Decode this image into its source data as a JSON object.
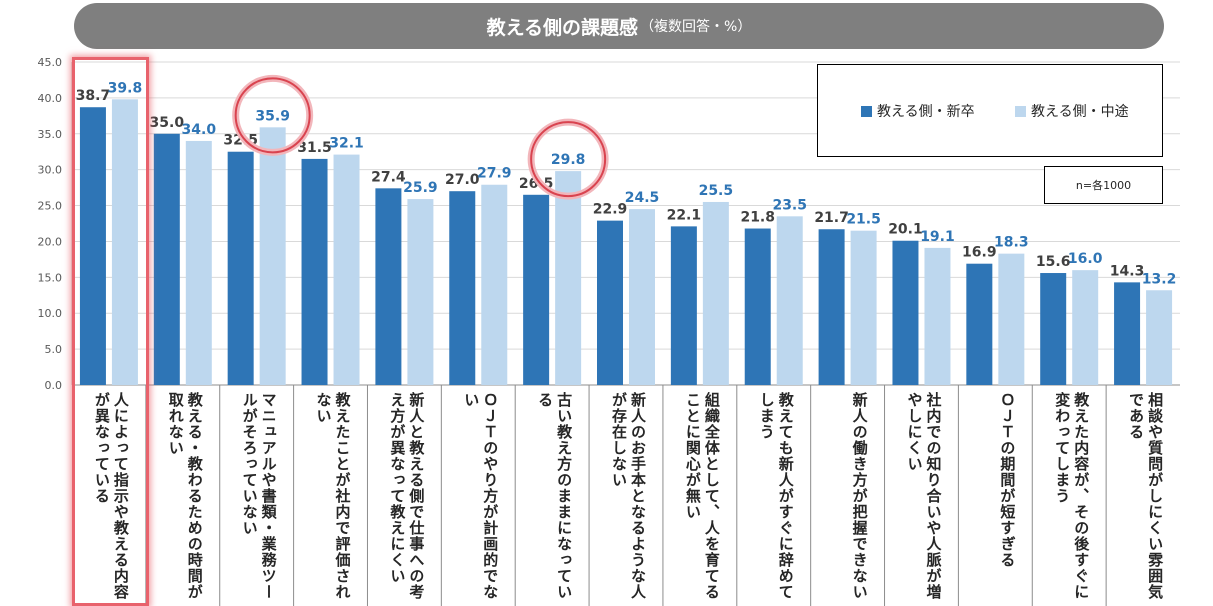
{
  "title": {
    "main": "教える側の課題感",
    "sub": "（複数回答・%）"
  },
  "legend": [
    {
      "name": "教える側・新卒",
      "color": "#2e75b6"
    },
    {
      "name": "教える側・中途",
      "color": "#bdd7ee"
    }
  ],
  "note": "n=各1000",
  "chart_data": {
    "type": "bar",
    "ylim": [
      0,
      45
    ],
    "yticks": [
      "0.0",
      "5.0",
      "10.0",
      "15.0",
      "20.0",
      "25.0",
      "30.0",
      "35.0",
      "40.0",
      "45.0"
    ],
    "grid": true,
    "legend_position": "top-right",
    "categories": [
      "人によって指示や教える内容が異なっている",
      "教える・教わるための時間が取れない",
      "マニュアルや書類・業務ツールがそろっていない",
      "教えたことが社内で評価されない",
      "新人と教える側で仕事への考え方が異なって教えにくい",
      "ＯＪＴのやり方が計画的でない",
      "古い教え方のままになっている",
      "新人のお手本となるような人が存在しない",
      "組織全体として、人を育てることに関心が無い",
      "教えても新人がすぐに辞めてしまう",
      "新人の働き方が把握できない",
      "社内での知り合いや人脈が増やしにくい",
      "ＯＪＴの期間が短すぎる",
      "教えた内容が、その後すぐに変わってしまう",
      "相談や質問がしにくい雰囲気である"
    ],
    "series": [
      {
        "name": "教える側・新卒",
        "labels": [
          "38.7",
          "35.0",
          "32.5",
          "31.5",
          "27.4",
          "27.0",
          "26.5",
          "22.9",
          "22.1",
          "21.8",
          "21.7",
          "20.1",
          "16.9",
          "15.6",
          "14.3"
        ],
        "values": [
          38.7,
          35.0,
          32.5,
          31.5,
          27.4,
          27.0,
          26.5,
          22.9,
          22.1,
          21.8,
          21.7,
          20.1,
          16.9,
          15.6,
          14.3
        ]
      },
      {
        "name": "教える側・中途",
        "labels": [
          "39.8",
          "34.0",
          "35.9",
          "32.1",
          "25.9",
          "27.9",
          "29.8",
          "24.5",
          "25.5",
          "23.5",
          "21.5",
          "19.1",
          "18.3",
          "16.0",
          "13.2"
        ],
        "values": [
          39.8,
          34.0,
          35.9,
          32.1,
          25.9,
          27.9,
          29.8,
          24.5,
          25.5,
          23.5,
          21.5,
          19.1,
          18.3,
          16.0,
          13.2
        ]
      }
    ]
  }
}
